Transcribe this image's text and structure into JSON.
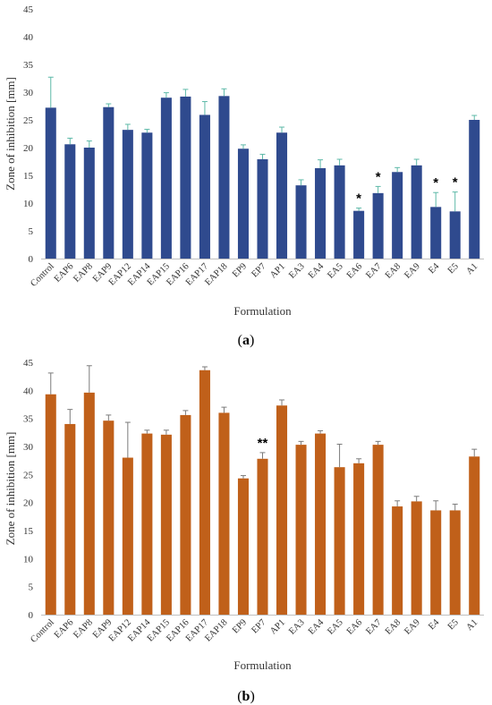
{
  "chart_data": [
    {
      "type": "bar",
      "panel_label": "a",
      "xlabel": "Formulation",
      "ylabel": "Zone of inhibition [mm]",
      "ylim": [
        0,
        45
      ],
      "yticks": [
        0,
        5,
        10,
        15,
        20,
        25,
        30,
        35,
        40,
        45
      ],
      "bar_color": "#2F4A8E",
      "error_color": "#5DB9A8",
      "categories": [
        "Control",
        "EAP6",
        "EAP8",
        "EAP9",
        "EAP12",
        "EAP14",
        "EAP15",
        "EAP16",
        "EAP17",
        "EAP18",
        "EP9",
        "EP7",
        "AP1",
        "EA3",
        "EA4",
        "EA5",
        "EA6",
        "EA7",
        "EA8",
        "EA9",
        "E4",
        "E5",
        "A1"
      ],
      "values": [
        27.2,
        20.6,
        20.0,
        27.3,
        23.2,
        22.7,
        29.0,
        29.2,
        25.9,
        29.3,
        19.8,
        17.9,
        22.7,
        13.2,
        16.3,
        16.8,
        8.6,
        11.8,
        15.6,
        16.8,
        9.3,
        8.5,
        25.0
      ],
      "errors": [
        5.5,
        1.1,
        1.2,
        0.6,
        1.0,
        0.6,
        0.9,
        1.3,
        2.4,
        1.3,
        0.7,
        0.9,
        1.0,
        1.0,
        1.5,
        1.1,
        0.5,
        1.2,
        0.8,
        1.1,
        2.6,
        3.5,
        0.8
      ],
      "annotations": [
        {
          "category": "EA6",
          "text": "*"
        },
        {
          "category": "EA7",
          "text": "*"
        },
        {
          "category": "E4",
          "text": "*"
        },
        {
          "category": "E5",
          "text": "*"
        }
      ]
    },
    {
      "type": "bar",
      "panel_label": "b",
      "xlabel": "Formulation",
      "ylabel": "Zone of inhibition [mm]",
      "ylim": [
        0,
        45
      ],
      "yticks": [
        0,
        5,
        10,
        15,
        20,
        25,
        30,
        35,
        40,
        45
      ],
      "bar_color": "#C0601A",
      "error_color": "#7B7B7B",
      "categories": [
        "Control",
        "EAP6",
        "EAP8",
        "EAP9",
        "EAP12",
        "EAP14",
        "EAP15",
        "EAP16",
        "EAP17",
        "EAP18",
        "EP9",
        "EP7",
        "AP1",
        "EA3",
        "EA4",
        "EA5",
        "EA6",
        "EA7",
        "EA8",
        "EA9",
        "E4",
        "E5",
        "A1"
      ],
      "values": [
        39.3,
        34.0,
        39.6,
        34.6,
        28.0,
        32.3,
        32.1,
        35.6,
        43.6,
        36.0,
        24.3,
        27.8,
        37.3,
        30.3,
        32.3,
        26.3,
        27.0,
        30.3,
        19.3,
        20.2,
        18.6,
        18.6,
        28.2
      ],
      "errors": [
        3.8,
        2.6,
        4.8,
        1.0,
        6.3,
        0.6,
        0.8,
        0.8,
        0.6,
        1.0,
        0.5,
        1.1,
        1.0,
        0.6,
        0.5,
        4.1,
        0.8,
        0.6,
        1.0,
        0.9,
        1.7,
        1.1,
        1.3
      ],
      "annotations": [
        {
          "category": "EP7",
          "text": "**"
        }
      ]
    }
  ]
}
